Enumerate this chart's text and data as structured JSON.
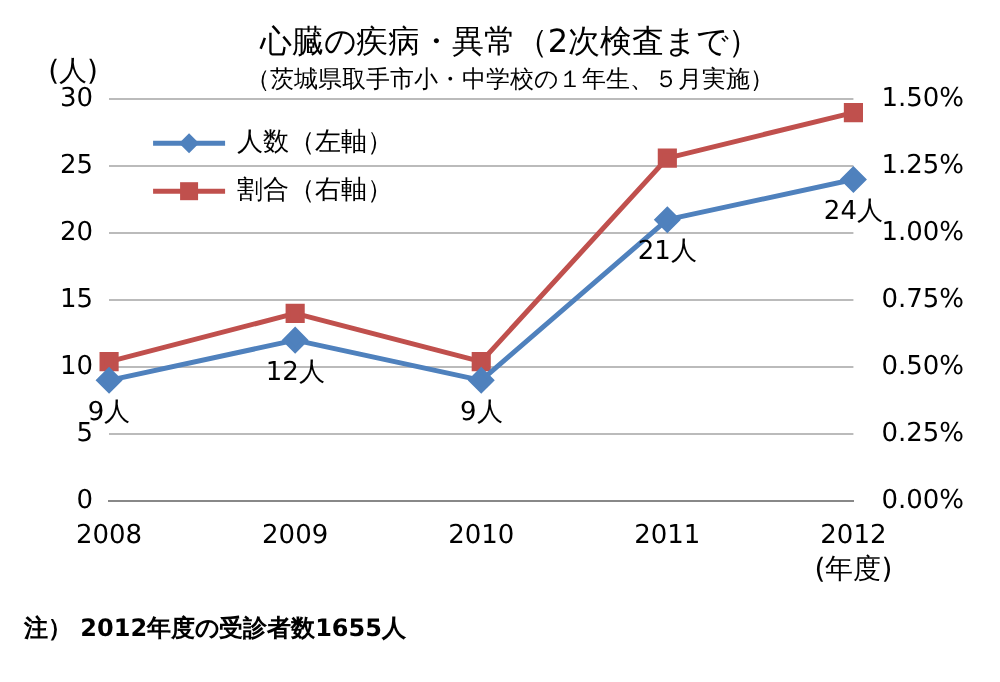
{
  "chart_data": {
    "type": "line",
    "title": "心臓の疾病・異常（2次検査まで）",
    "subtitle": "（茨城県取手市小・中学校の１年生、５月実施）",
    "ylabel": "(人)",
    "xlabel": "(年度)",
    "categories": [
      "2008",
      "2009",
      "2010",
      "2011",
      "2012"
    ],
    "series": [
      {
        "name": "人数（左軸）",
        "color": "#4f81bd",
        "marker": "diamond",
        "values": [
          9,
          12,
          9,
          21,
          24
        ],
        "value_labels": [
          "9人",
          "12人",
          "9人",
          "21人",
          "24人"
        ]
      },
      {
        "name": "割合（右軸）",
        "color": "#c0504d",
        "marker": "square",
        "axis": "y2",
        "values": [
          0.52,
          0.7,
          0.52,
          1.28,
          1.45
        ]
      }
    ],
    "ylim": [
      0,
      30
    ],
    "yticks": [
      0,
      5,
      10,
      15,
      20,
      25,
      30
    ],
    "y2lim": [
      0,
      1.5
    ],
    "y2ticks": [
      {
        "value": 0,
        "label": "0.00%"
      },
      {
        "value": 0.25,
        "label": "0.25%"
      },
      {
        "value": 0.5,
        "label": "0.50%"
      },
      {
        "value": 0.75,
        "label": "0.75%"
      },
      {
        "value": 1,
        "label": "1.00%"
      },
      {
        "value": 1.25,
        "label": "1.25%"
      },
      {
        "value": 1.5,
        "label": "1.50%"
      }
    ],
    "grid": "y",
    "legend": "top left",
    "line_style": "solid",
    "annotations": [
      "注） 2012年度の受診者数1655人"
    ]
  }
}
